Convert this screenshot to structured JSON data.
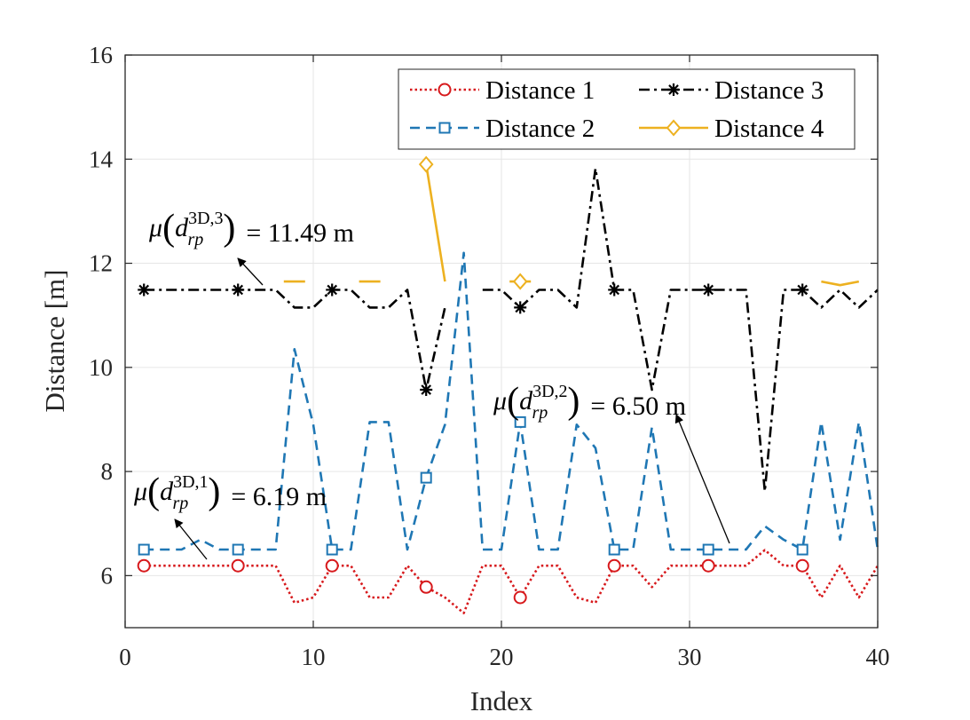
{
  "chart_data": {
    "type": "line",
    "xlabel": "Index",
    "ylabel": "Distance [m]",
    "xlim": [
      0,
      40
    ],
    "ylim": [
      5,
      16
    ],
    "xticks": [
      "0",
      "10",
      "20",
      "30",
      "40"
    ],
    "yticks": [
      "6",
      "8",
      "10",
      "12",
      "14",
      "16"
    ],
    "grid": true,
    "legend_position": "top-right",
    "x": [
      1,
      2,
      3,
      4,
      5,
      6,
      7,
      8,
      9,
      10,
      11,
      12,
      13,
      14,
      15,
      16,
      17,
      18,
      19,
      20,
      21,
      22,
      23,
      24,
      25,
      26,
      27,
      28,
      29,
      30,
      31,
      32,
      33,
      34,
      35,
      36,
      37,
      38,
      39,
      40
    ],
    "series": [
      {
        "name": "Distance 1",
        "color": "#D7191C",
        "style": "dotted",
        "marker": "circle",
        "marker_every": 5,
        "values": [
          6.19,
          6.19,
          6.19,
          6.19,
          6.19,
          6.19,
          6.19,
          6.19,
          5.48,
          5.58,
          6.19,
          6.19,
          5.58,
          5.58,
          6.19,
          5.78,
          5.58,
          5.28,
          6.19,
          6.19,
          5.58,
          6.19,
          6.19,
          5.58,
          5.48,
          6.19,
          6.19,
          5.78,
          6.19,
          6.19,
          6.19,
          6.19,
          6.19,
          6.49,
          6.19,
          6.19,
          5.58,
          6.19,
          5.58,
          6.19
        ]
      },
      {
        "name": "Distance 2",
        "color": "#1F77B4",
        "style": "dashed",
        "marker": "square",
        "marker_every": 5,
        "values": [
          6.5,
          6.5,
          6.5,
          6.69,
          6.5,
          6.5,
          6.5,
          6.5,
          10.35,
          8.9,
          6.5,
          6.5,
          8.95,
          8.95,
          6.5,
          7.88,
          8.9,
          12.2,
          6.5,
          6.5,
          8.95,
          6.5,
          6.5,
          8.9,
          8.45,
          6.5,
          6.5,
          8.85,
          6.5,
          6.5,
          6.5,
          6.5,
          6.5,
          6.95,
          6.69,
          6.5,
          8.95,
          6.69,
          8.95,
          6.5
        ]
      },
      {
        "name": "Distance 3",
        "color": "#000000",
        "style": "dashdot",
        "marker": "asterisk",
        "marker_every": 5,
        "values": [
          11.49,
          11.49,
          11.49,
          11.49,
          11.49,
          11.49,
          11.49,
          11.49,
          11.15,
          11.15,
          11.49,
          11.49,
          11.15,
          11.15,
          11.49,
          9.57,
          11.15,
          null,
          11.49,
          11.49,
          11.15,
          11.49,
          11.49,
          11.15,
          13.82,
          11.49,
          11.49,
          9.57,
          11.49,
          11.49,
          11.49,
          11.49,
          11.49,
          7.62,
          11.49,
          11.49,
          11.15,
          11.49,
          11.15,
          11.49
        ]
      },
      {
        "name": "Distance 4",
        "color": "#EDB120",
        "style": "solid",
        "marker": "diamond",
        "marker_indices": [
          16,
          21
        ],
        "values": [
          null,
          null,
          null,
          null,
          null,
          null,
          null,
          null,
          11.65,
          null,
          null,
          null,
          11.65,
          null,
          null,
          13.9,
          11.65,
          null,
          null,
          null,
          11.65,
          null,
          null,
          null,
          null,
          null,
          null,
          null,
          null,
          null,
          null,
          null,
          null,
          null,
          null,
          null,
          11.65,
          11.58,
          11.65,
          null
        ]
      }
    ],
    "annotations": [
      {
        "id": "mu3",
        "prefix": "μ",
        "base": "d",
        "sub": "rp",
        "sup": "3D,3",
        "value_text": "= 11.49 m"
      },
      {
        "id": "mu2",
        "prefix": "μ",
        "base": "d",
        "sub": "rp",
        "sup": "3D,2",
        "value_text": "= 6.50 m"
      },
      {
        "id": "mu1",
        "prefix": "μ",
        "base": "d",
        "sub": "rp",
        "sup": "3D,1",
        "value_text": "= 6.19 m"
      }
    ]
  }
}
